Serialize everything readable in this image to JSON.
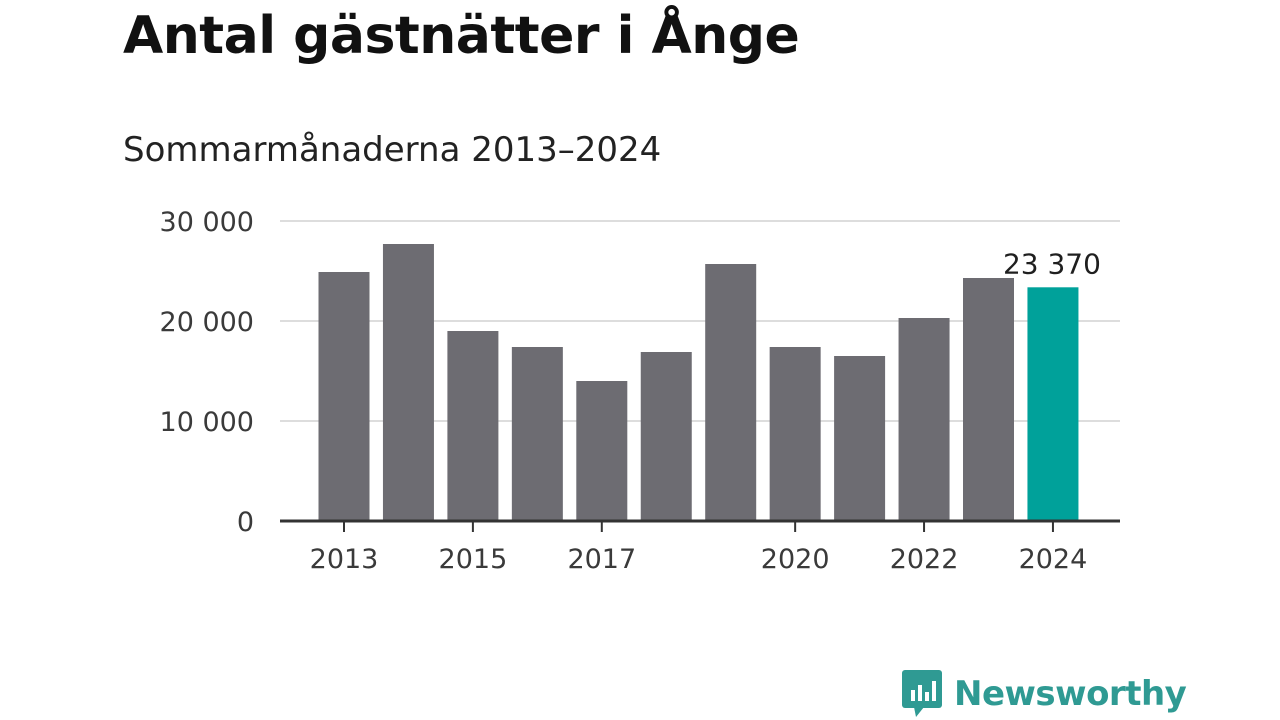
{
  "title": "Antal gästnätter i Ånge",
  "subtitle": "Sommarmånaderna 2013–2024",
  "brand": {
    "name": "Newsworthy",
    "color": "#2f9a93"
  },
  "colors": {
    "bar": "#6d6c72",
    "highlight": "#00a19a",
    "grid": "#dddddd",
    "axis": "#333333"
  },
  "chart_data": {
    "type": "bar",
    "title": "Antal gästnätter i Ånge",
    "subtitle": "Sommarmånaderna 2013–2024",
    "xlabel": "",
    "ylabel": "",
    "categories": [
      "2013",
      "2014",
      "2015",
      "2016",
      "2017",
      "2018",
      "2019",
      "2020",
      "2021",
      "2022",
      "2023",
      "2024"
    ],
    "values": [
      24900,
      27700,
      19000,
      17400,
      14000,
      16900,
      25700,
      17400,
      16500,
      20300,
      24300,
      23370
    ],
    "highlight_category": "2024",
    "data_labels": [
      {
        "category": "2024",
        "text": "23 370"
      }
    ],
    "ylim": [
      0,
      30000
    ],
    "y_ticks": [
      0,
      10000,
      20000,
      30000
    ],
    "y_tick_labels": [
      "0",
      "10 000",
      "20 000",
      "30 000"
    ],
    "x_tick_categories": [
      "2013",
      "2015",
      "2017",
      "2020",
      "2022",
      "2024"
    ],
    "grid": true,
    "legend": "none"
  }
}
